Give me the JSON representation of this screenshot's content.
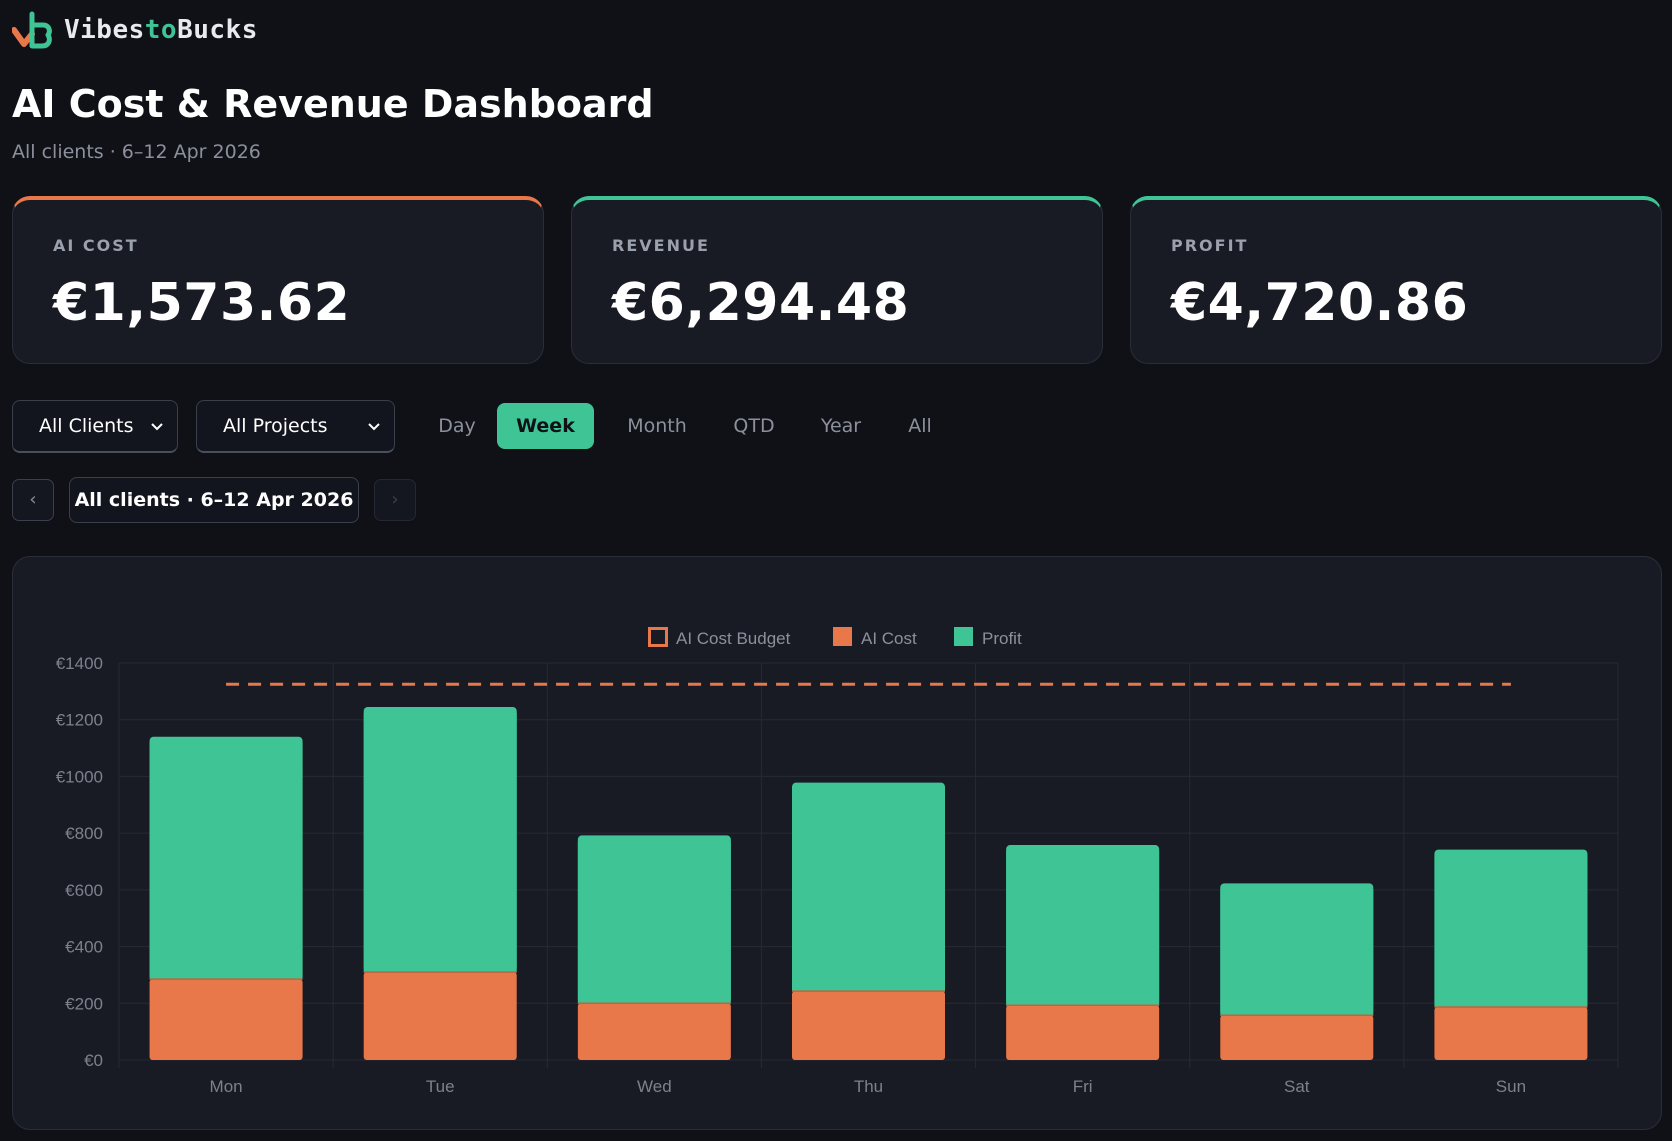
{
  "brand": {
    "name_part1": "Vibes",
    "name_part2": "to",
    "name_part3": "Bucks",
    "logo_icon": "vb-logo-icon"
  },
  "header": {
    "title": "AI Cost & Revenue Dashboard",
    "subtitle": "All clients · 6–12 Apr 2026"
  },
  "cards": [
    {
      "label": "AI COST",
      "value": "€1,573.62",
      "accent": "#e8774a"
    },
    {
      "label": "REVENUE",
      "value": "€6,294.48",
      "accent": "#3fc495"
    },
    {
      "label": "PROFIT",
      "value": "€4,720.86",
      "accent": "#3fc495"
    }
  ],
  "filters": {
    "client_select": "All Clients",
    "project_select": "All Projects",
    "periods": [
      "Day",
      "Week",
      "Month",
      "QTD",
      "Year",
      "All"
    ],
    "active_period": "Week"
  },
  "navigation": {
    "prev_icon": "chevron-left-icon",
    "prev_label": "‹",
    "next_icon": "chevron-right-icon",
    "next_label": "›",
    "range_label": "All clients · 6–12 Apr 2026"
  },
  "colors": {
    "accent_green": "#3fc495",
    "accent_orange": "#e8774a",
    "background": "#0f1117",
    "panel": "#181b24"
  },
  "chart_data": {
    "type": "bar",
    "stacked": true,
    "categories": [
      "Mon",
      "Tue",
      "Wed",
      "Thu",
      "Fri",
      "Sat",
      "Sun"
    ],
    "series": [
      {
        "name": "AI Cost",
        "color": "#e8774a",
        "values": [
          285,
          310,
          200,
          243,
          193,
          158,
          187
        ]
      },
      {
        "name": "Profit",
        "color": "#3fc495",
        "values": [
          855,
          935,
          592,
          735,
          565,
          465,
          555
        ]
      }
    ],
    "budget": {
      "name": "AI Cost Budget",
      "value": 1325,
      "color": "#e8774a",
      "style": "dashed"
    },
    "legend": [
      "AI Cost Budget",
      "AI Cost",
      "Profit"
    ],
    "legend_position": "top-center",
    "ylim": [
      0,
      1400
    ],
    "yticks": [
      0,
      200,
      400,
      600,
      800,
      1000,
      1200,
      1400
    ],
    "ytick_labels": [
      "€0",
      "€200",
      "€400",
      "€600",
      "€800",
      "€1000",
      "€1200",
      "€1400"
    ],
    "grid": true,
    "title": "",
    "xlabel": "",
    "ylabel": ""
  }
}
